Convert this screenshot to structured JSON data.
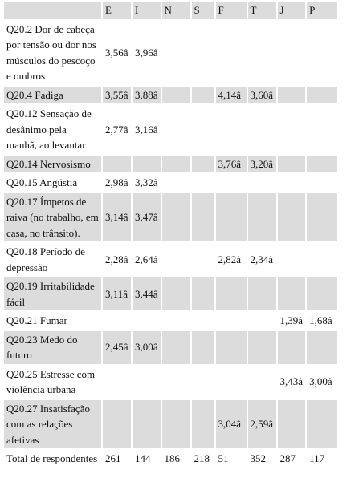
{
  "columns": [
    "",
    "E",
    "I",
    "N",
    "S",
    "F",
    "T",
    "J",
    "P"
  ],
  "rows": [
    {
      "label": "Q20.2 Dor de cabeça por tensão ou dor nos músculos do pescoço e ombros",
      "values": [
        "3,56â",
        "3,96â",
        "",
        "",
        "",
        "",
        "",
        ""
      ]
    },
    {
      "label": "Q20.4 Fadiga",
      "values": [
        "3,55â",
        "3,88â",
        "",
        "",
        "4,14â",
        "3,60â",
        "",
        ""
      ]
    },
    {
      "label": "Q20.12 Sensação de desânimo pela manhã, ao levantar",
      "values": [
        "2,77â",
        "3,16â",
        "",
        "",
        "",
        "",
        "",
        ""
      ]
    },
    {
      "label": "Q20.14 Nervosismo",
      "values": [
        "",
        "",
        "",
        "",
        "3,76â",
        "3,20â",
        "",
        ""
      ]
    },
    {
      "label": "Q20.15 Angústia",
      "values": [
        "2,98â",
        "3,32â",
        "",
        "",
        "",
        "",
        "",
        ""
      ]
    },
    {
      "label": "Q20.17 Ímpetos de raiva (no trabalho, em casa, no trânsito).",
      "values": [
        "3,14â",
        "3,47â",
        "",
        "",
        "",
        "",
        "",
        ""
      ]
    },
    {
      "label": "Q20.18 Período de depressão",
      "values": [
        "2,28â",
        "2,64â",
        "",
        "",
        "2,82â",
        "2,34â",
        "",
        ""
      ]
    },
    {
      "label": "Q20.19 Irritabilidade fácil",
      "values": [
        "3,11â",
        "3,44â",
        "",
        "",
        "",
        "",
        "",
        ""
      ]
    },
    {
      "label": "Q20.21 Fumar",
      "values": [
        "",
        "",
        "",
        "",
        "",
        "",
        "1,39â",
        "1,68â"
      ]
    },
    {
      "label": "Q20.23 Medo do futuro",
      "values": [
        "2,45â",
        "3,00â",
        "",
        "",
        "",
        "",
        "",
        ""
      ]
    },
    {
      "label": "Q20.25 Estresse com violência urbana",
      "values": [
        "",
        "",
        "",
        "",
        "",
        "",
        "3,43â",
        "3,00â"
      ]
    },
    {
      "label": "Q20.27 Insatisfação com as relações afetivas",
      "values": [
        "",
        "",
        "",
        "",
        "3,04â",
        "2,59â",
        "",
        ""
      ]
    },
    {
      "label": "Total de respondentes",
      "values": [
        "261",
        "144",
        "186",
        "218",
        "51",
        "352",
        "287",
        "117"
      ]
    }
  ]
}
